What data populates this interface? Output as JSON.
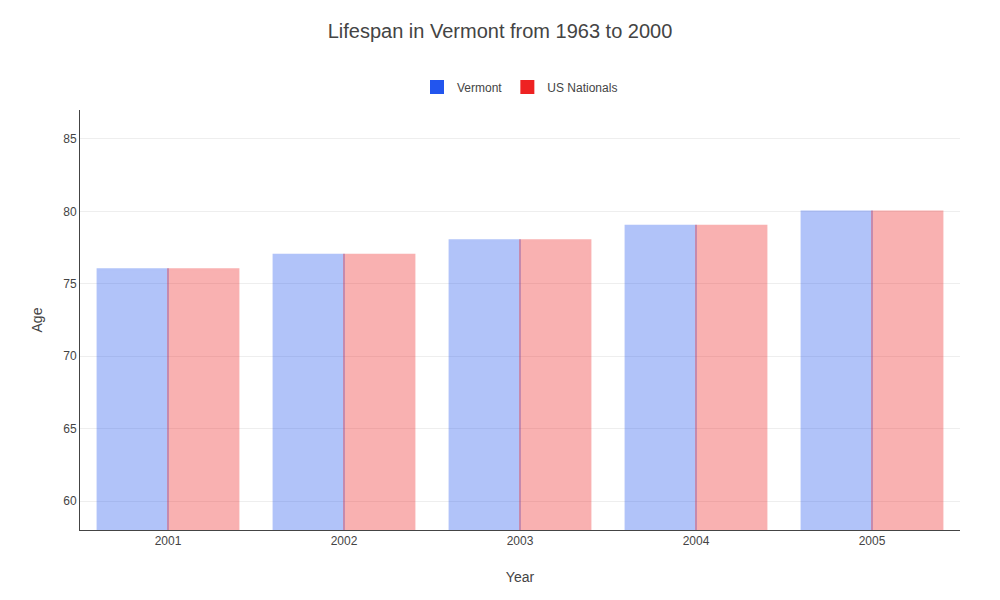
{
  "chart_data": {
    "type": "bar",
    "title": "Lifespan in Vermont from 1963 to 2000",
    "x_label": "Year",
    "y_label": "Age",
    "categories": [
      "2001",
      "2002",
      "2003",
      "2004",
      "2005"
    ],
    "series": [
      {
        "name": "Vermont",
        "color": "#2255ee",
        "values": [
          76,
          77,
          78,
          79,
          80
        ]
      },
      {
        "name": "US Nationals",
        "color": "#ee2222",
        "values": [
          76,
          77,
          78,
          79,
          80
        ]
      }
    ],
    "ylim": [
      58,
      87
    ],
    "yticks": [
      60,
      65,
      70,
      75,
      80,
      85
    ],
    "grid": true,
    "legend": "top"
  }
}
